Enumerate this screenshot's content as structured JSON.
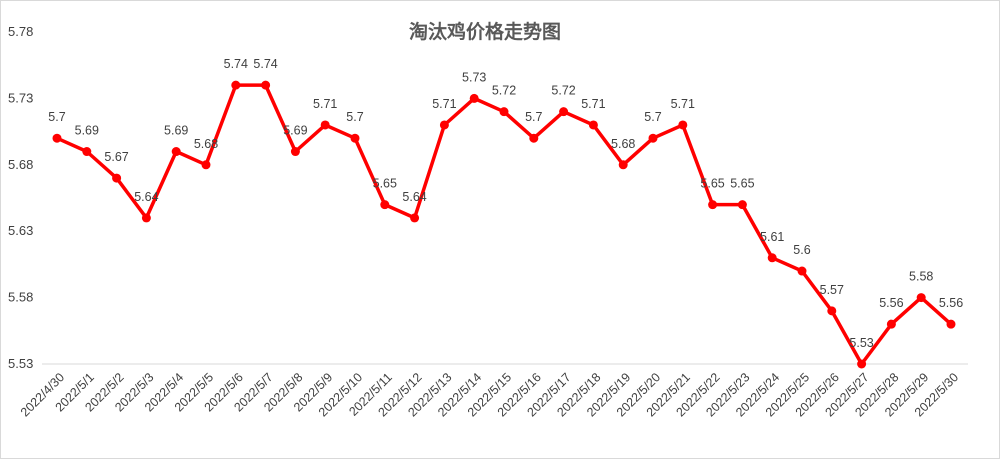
{
  "chart_data": {
    "type": "line",
    "title": "淘汰鸡价格走势图",
    "xlabel": "",
    "ylabel": "",
    "categories": [
      "2022/4/30",
      "2022/5/1",
      "2022/5/2",
      "2022/5/3",
      "2022/5/4",
      "2022/5/5",
      "2022/5/6",
      "2022/5/7",
      "2022/5/8",
      "2022/5/9",
      "2022/5/10",
      "2022/5/11",
      "2022/5/12",
      "2022/5/13",
      "2022/5/14",
      "2022/5/15",
      "2022/5/16",
      "2022/5/17",
      "2022/5/18",
      "2022/5/19",
      "2022/5/20",
      "2022/5/21",
      "2022/5/22",
      "2022/5/23",
      "2022/5/24",
      "2022/5/25",
      "2022/5/26",
      "2022/5/27",
      "2022/5/28",
      "2022/5/29",
      "2022/5/30"
    ],
    "values": [
      5.7,
      5.69,
      5.67,
      5.64,
      5.69,
      5.68,
      5.74,
      5.74,
      5.69,
      5.71,
      5.7,
      5.65,
      5.64,
      5.71,
      5.73,
      5.72,
      5.7,
      5.72,
      5.71,
      5.68,
      5.7,
      5.71,
      5.65,
      5.65,
      5.61,
      5.6,
      5.57,
      5.53,
      5.56,
      5.58,
      5.56
    ],
    "ylim": [
      5.53,
      5.78
    ],
    "yticks": [
      "5.53",
      "5.58",
      "5.63",
      "5.68",
      "5.73",
      "5.78"
    ],
    "grid": false,
    "legend": "none",
    "line_color": "#ff0000"
  }
}
